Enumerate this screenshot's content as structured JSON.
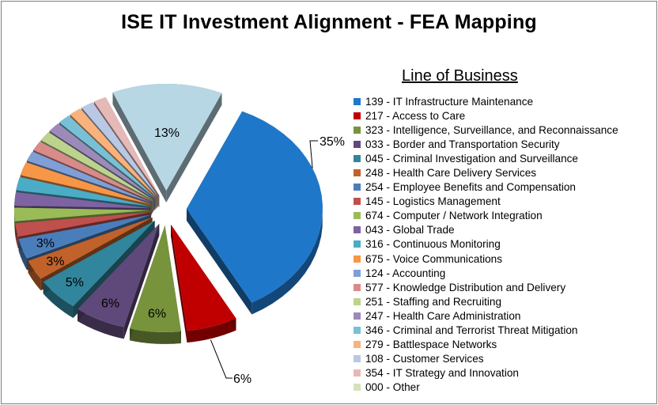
{
  "chart_data": {
    "type": "pie",
    "title": "ISE IT Investment Alignment - FEA Mapping",
    "legend_title": "Line of Business",
    "legend_position": "right",
    "style": "3d-exploded",
    "slices": [
      {
        "label": "139 - IT Infrastructure Maintenance",
        "value": 35,
        "display": "35%",
        "color": "#1f77c9"
      },
      {
        "label": "217 - Access to Care",
        "value": 6,
        "display": "6%",
        "color": "#c00000"
      },
      {
        "label": "323 - Intelligence, Surveillance, and Reconnaissance",
        "value": 6,
        "display": "6%",
        "color": "#77933c"
      },
      {
        "label": "033 - Border and Transportation Security",
        "value": 6,
        "display": "6%",
        "color": "#5f497a"
      },
      {
        "label": "045 - Criminal Investigation and Surveillance",
        "value": 5,
        "display": "5%",
        "color": "#31859c"
      },
      {
        "label": "248 - Health Care Delivery Services",
        "value": 3,
        "display": "3%",
        "color": "#c0622a"
      },
      {
        "label": "254 - Employee Benefits and Compensation",
        "value": 3,
        "display": "3%",
        "color": "#4a7ebb"
      },
      {
        "label": "145 - Logistics Management",
        "value": 2,
        "display": "",
        "color": "#c0504d"
      },
      {
        "label": "674 - Computer / Network Integration",
        "value": 2,
        "display": "",
        "color": "#9bbb59"
      },
      {
        "label": "043 - Global Trade",
        "value": 2,
        "display": "",
        "color": "#7e63a2"
      },
      {
        "label": "316 - Continuous Monitoring",
        "value": 2,
        "display": "",
        "color": "#4bacc6"
      },
      {
        "label": "675 - Voice Communications",
        "value": 2,
        "display": "",
        "color": "#f79646"
      },
      {
        "label": "124 - Accounting",
        "value": 1.5,
        "display": "",
        "color": "#7f9fd6"
      },
      {
        "label": "577 - Knowledge Distribution and Delivery",
        "value": 1.5,
        "display": "",
        "color": "#d88b89"
      },
      {
        "label": "251 - Staffing and Recruiting",
        "value": 1.5,
        "display": "",
        "color": "#bcd38e"
      },
      {
        "label": "247 - Health Care Administration",
        "value": 1.5,
        "display": "",
        "color": "#9c8bb8"
      },
      {
        "label": "346 - Criminal and Terrorist Threat Mitigation",
        "value": 1.5,
        "display": "",
        "color": "#78c0d6"
      },
      {
        "label": "279 - Battlespace Networks",
        "value": 1.5,
        "display": "",
        "color": "#f9b27b"
      },
      {
        "label": "108 - Customer Services",
        "value": 1.5,
        "display": "",
        "color": "#b9c8e4"
      },
      {
        "label": "354 - IT Strategy and Innovation",
        "value": 1.5,
        "display": "",
        "color": "#e4b9b8"
      },
      {
        "label": "000 - Other",
        "value": 13,
        "display": "13%",
        "color": "#b7d7e4"
      }
    ],
    "legend_only_entries": [
      {
        "label": "000 - Other",
        "color": "#d4e3bd"
      }
    ]
  }
}
